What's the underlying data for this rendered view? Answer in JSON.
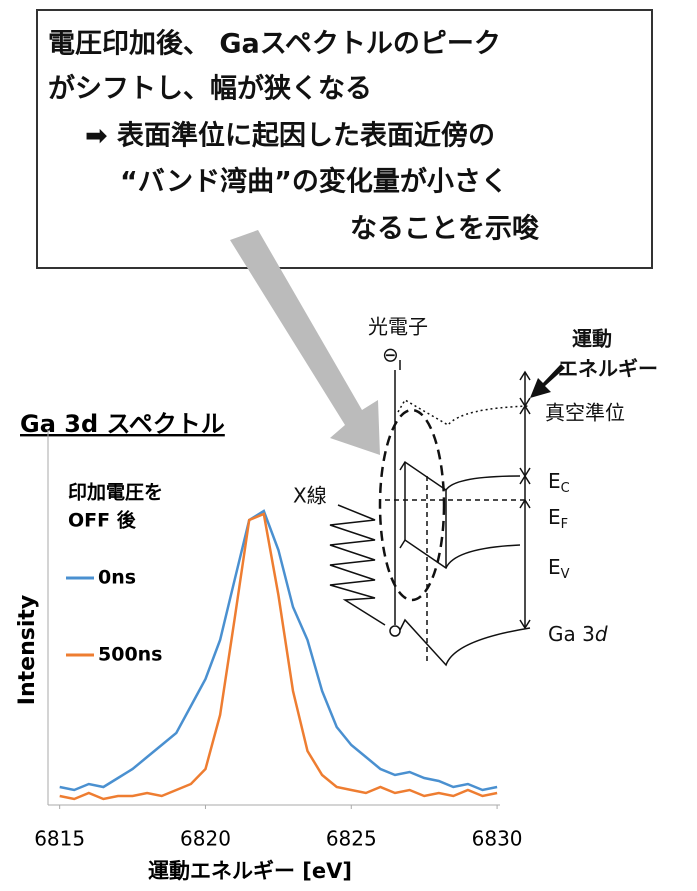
{
  "callout": {
    "lines": [
      "電圧印加後、 Gaスペクトルのピーク",
      "がシフトし、幅が狭くなる",
      "➡ 表面準位に起因した表面近傍の",
      "“バンド湾曲”の変化量が小さく",
      "なることを示唆"
    ]
  },
  "diagram": {
    "photoelectron": "光電子",
    "electron": "⊖",
    "kinetic_energy": [
      "運動",
      "エネルギー"
    ],
    "vacuum_level": "真空準位",
    "ec": {
      "main": "E",
      "sub": "C"
    },
    "ef": {
      "main": "E",
      "sub": "F"
    },
    "ev": {
      "main": "E",
      "sub": "V"
    },
    "ga3d": {
      "main": "Ga 3",
      "italic": "d"
    },
    "xray": "X線"
  },
  "chart_data": {
    "type": "line",
    "title": "Ga 3d スペクトル",
    "xlabel": "運動エネルギー [eV]",
    "ylabel": "Intensity",
    "legend_title": [
      "印加電圧を",
      "OFF 後"
    ],
    "x": [
      6815,
      6815.5,
      6816,
      6816.5,
      6817,
      6817.5,
      6818,
      6818.5,
      6819,
      6819.5,
      6820,
      6820.5,
      6821,
      6821.5,
      6822,
      6822.5,
      6823,
      6823.5,
      6824,
      6824.5,
      6825,
      6825.5,
      6826,
      6826.5,
      6827,
      6827.5,
      6828,
      6828.5,
      6829,
      6829.5,
      6830
    ],
    "series": [
      {
        "name": "0ns",
        "color": "#4a90d0",
        "values": [
          0.06,
          0.05,
          0.07,
          0.06,
          0.09,
          0.12,
          0.16,
          0.2,
          0.24,
          0.33,
          0.42,
          0.55,
          0.75,
          0.95,
          0.98,
          0.85,
          0.66,
          0.55,
          0.38,
          0.26,
          0.2,
          0.16,
          0.12,
          0.1,
          0.11,
          0.09,
          0.08,
          0.06,
          0.07,
          0.05,
          0.06
        ]
      },
      {
        "name": "500ns",
        "color": "#ee7d31",
        "values": [
          0.03,
          0.02,
          0.04,
          0.02,
          0.03,
          0.03,
          0.04,
          0.03,
          0.05,
          0.07,
          0.12,
          0.3,
          0.62,
          0.95,
          0.97,
          0.7,
          0.38,
          0.18,
          0.1,
          0.06,
          0.05,
          0.04,
          0.06,
          0.04,
          0.05,
          0.03,
          0.04,
          0.03,
          0.05,
          0.03,
          0.04
        ]
      }
    ],
    "xlim": [
      6814.6,
      6830.1
    ],
    "xticks": [
      6815,
      6820,
      6825,
      6830
    ],
    "ylim": [
      0,
      1.25
    ]
  }
}
